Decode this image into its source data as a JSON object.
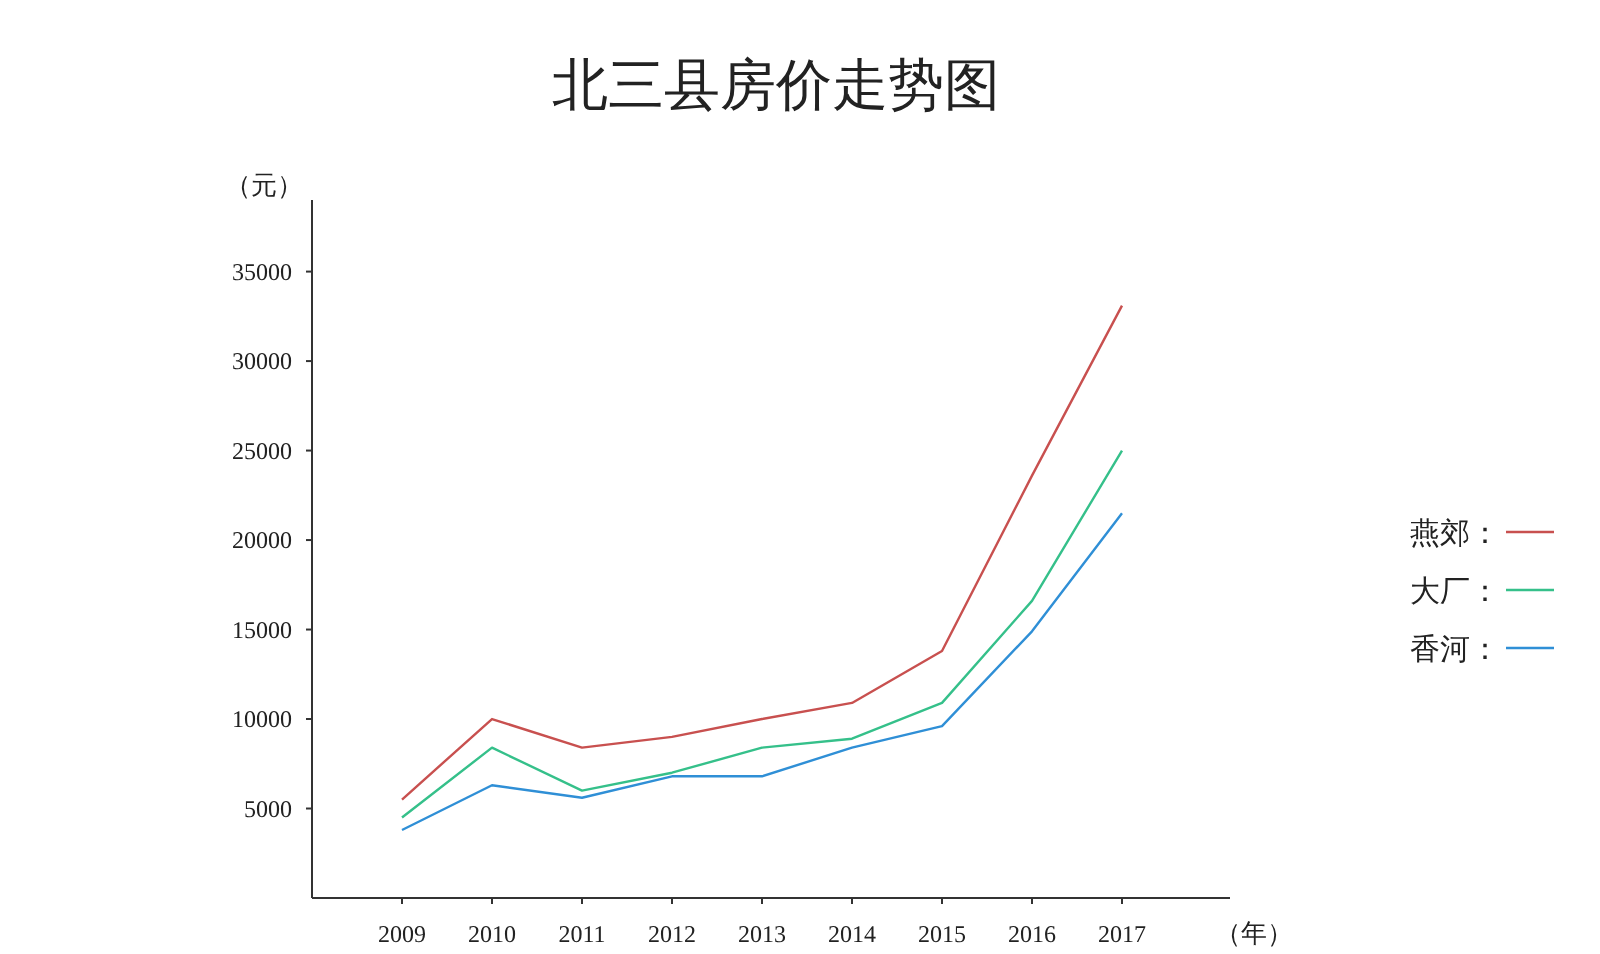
{
  "chart_data": {
    "type": "line",
    "title": "北三县房价走势图",
    "ylabel": "（元）",
    "xlabel": "（年）",
    "x": [
      2009,
      2010,
      2011,
      2012,
      2013,
      2014,
      2015,
      2016,
      2017
    ],
    "xlim": [
      2008,
      2018.2
    ],
    "xticks": [
      2009,
      2010,
      2011,
      2012,
      2013,
      2014,
      2015,
      2016,
      2017
    ],
    "ylim": [
      0,
      39000
    ],
    "yticks": [
      5000,
      10000,
      15000,
      20000,
      25000,
      30000,
      35000
    ],
    "grid": false,
    "legend": "right",
    "marker": "none",
    "line_style": "solid",
    "series": [
      {
        "name": "燕郊：",
        "color": "#c8504f",
        "values": [
          5500,
          10000,
          8400,
          9000,
          10000,
          10900,
          13800,
          23600,
          33100
        ]
      },
      {
        "name": "大厂：",
        "color": "#35c08a",
        "values": [
          4500,
          8400,
          6000,
          7000,
          8400,
          8900,
          10900,
          16600,
          25000
        ]
      },
      {
        "name": "香河：",
        "color": "#2f8fd6",
        "values": [
          3800,
          6300,
          5600,
          6800,
          6800,
          8400,
          9600,
          14900,
          21500
        ]
      }
    ]
  }
}
